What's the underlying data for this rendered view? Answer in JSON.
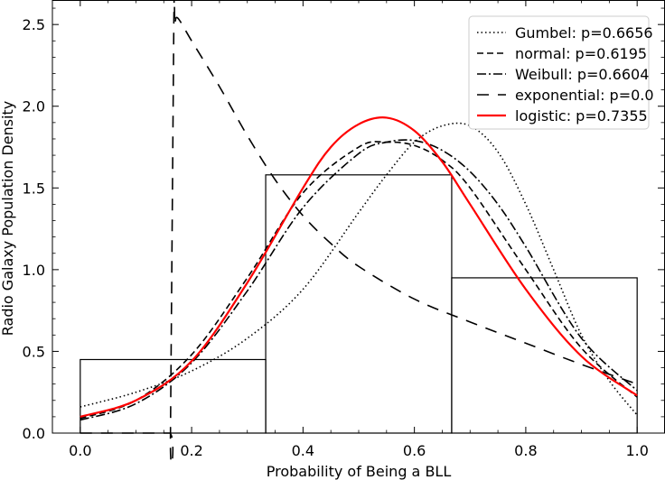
{
  "chart_data": {
    "type": "line",
    "xlabel": "Probability of Being a BLL",
    "ylabel": "Radio Galaxy Population Density",
    "xlim": [
      -0.05,
      1.05
    ],
    "ylim": [
      0,
      2.65
    ],
    "x_ticks": [
      0.0,
      0.2,
      0.4,
      0.6,
      0.8,
      1.0
    ],
    "x_tick_labels": [
      "0.0",
      "0.2",
      "0.4",
      "0.6",
      "0.8",
      "1.0"
    ],
    "y_ticks": [
      0.0,
      0.5,
      1.0,
      1.5,
      2.0,
      2.5
    ],
    "y_tick_labels": [
      "0.0",
      "0.5",
      "1.0",
      "1.5",
      "2.0",
      "2.5"
    ],
    "grid": false,
    "legend_position": "top-right",
    "histogram": {
      "bins": [
        [
          0.0,
          0.333
        ],
        [
          0.333,
          0.667
        ],
        [
          0.667,
          1.0
        ]
      ],
      "values": [
        0.45,
        1.58,
        0.95
      ],
      "color": "#000000"
    },
    "series": [
      {
        "name": "Gumbel: p=0.6656",
        "style": "dotted",
        "color": "#000000",
        "x": [
          0.0,
          0.1,
          0.2,
          0.3,
          0.4,
          0.5,
          0.55,
          0.6,
          0.65,
          0.7,
          0.75,
          0.8,
          0.85,
          0.9,
          0.95,
          1.0
        ],
        "y": [
          0.16,
          0.25,
          0.38,
          0.58,
          0.88,
          1.35,
          1.58,
          1.78,
          1.88,
          1.88,
          1.72,
          1.4,
          1.0,
          0.6,
          0.32,
          0.11
        ]
      },
      {
        "name": "normal: p=0.6195",
        "style": "dashed",
        "color": "#000000",
        "x": [
          0.0,
          0.1,
          0.2,
          0.3,
          0.4,
          0.5,
          0.55,
          0.6,
          0.65,
          0.7,
          0.8,
          0.9,
          1.0
        ],
        "y": [
          0.09,
          0.2,
          0.48,
          0.95,
          1.47,
          1.75,
          1.78,
          1.76,
          1.67,
          1.5,
          1.0,
          0.52,
          0.22
        ]
      },
      {
        "name": "Weibull: p=0.6604",
        "style": "dashdot",
        "color": "#000000",
        "x": [
          0.0,
          0.1,
          0.2,
          0.3,
          0.4,
          0.5,
          0.55,
          0.6,
          0.65,
          0.7,
          0.75,
          0.8,
          0.9,
          1.0
        ],
        "y": [
          0.08,
          0.18,
          0.43,
          0.87,
          1.38,
          1.71,
          1.78,
          1.79,
          1.73,
          1.6,
          1.4,
          1.14,
          0.58,
          0.26
        ]
      },
      {
        "name": "exponential: p=0.0",
        "style": "loosedash",
        "color": "#000000",
        "x": [
          0.0,
          0.08,
          0.16,
          0.162,
          0.168,
          0.17,
          0.175,
          0.2,
          0.25,
          0.3,
          0.35,
          0.4,
          0.45,
          0.5,
          0.6,
          0.7,
          0.8,
          0.9,
          1.0
        ],
        "y": [
          0.0,
          0.0,
          0.0,
          0.0,
          2.5,
          2.5,
          2.54,
          2.4,
          2.12,
          1.82,
          1.55,
          1.33,
          1.16,
          1.02,
          0.82,
          0.68,
          0.55,
          0.42,
          0.3
        ]
      },
      {
        "name": "logistic: p=0.7355",
        "style": "solid",
        "color": "#ff0000",
        "x": [
          0.0,
          0.1,
          0.2,
          0.3,
          0.4,
          0.45,
          0.5,
          0.55,
          0.6,
          0.65,
          0.7,
          0.8,
          0.9,
          1.0
        ],
        "y": [
          0.1,
          0.2,
          0.44,
          0.92,
          1.5,
          1.75,
          1.89,
          1.93,
          1.85,
          1.66,
          1.4,
          0.88,
          0.47,
          0.23
        ]
      }
    ]
  }
}
